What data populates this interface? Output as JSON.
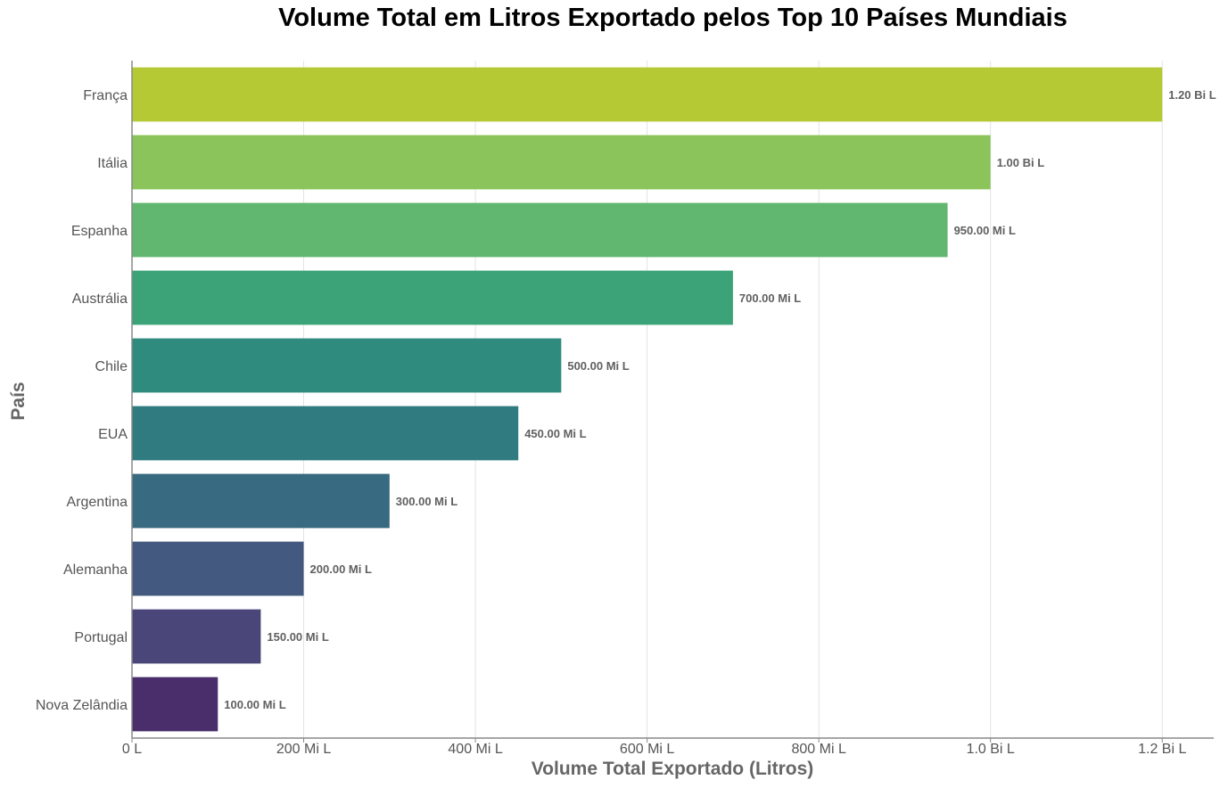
{
  "chart_data": {
    "type": "bar",
    "orientation": "horizontal",
    "title": "Volume Total em Litros Exportado pelos Top 10 Países Mundiais",
    "xlabel": "Volume Total Exportado (Litros)",
    "ylabel": "País",
    "categories": [
      "França",
      "Itália",
      "Espanha",
      "Austrália",
      "Chile",
      "EUA",
      "Argentina",
      "Alemanha",
      "Portugal",
      "Nova Zelândia"
    ],
    "values": [
      1200000000,
      1000000000,
      950000000,
      700000000,
      500000000,
      450000000,
      300000000,
      200000000,
      150000000,
      100000000
    ],
    "data_labels": [
      "1.20 Bi L",
      "1.00 Bi L",
      "950.00 Mi L",
      "700.00 Mi L",
      "500.00 Mi L",
      "450.00 Mi L",
      "300.00 Mi L",
      "200.00 Mi L",
      "150.00 Mi L",
      "100.00 Mi L"
    ],
    "colors": [
      "#b5c935",
      "#8bc45a",
      "#61b76f",
      "#3ca278",
      "#2e8b7e",
      "#307b80",
      "#386a82",
      "#44597f",
      "#4a4679",
      "#4a2e6c"
    ],
    "xticks": [
      0,
      200000000,
      400000000,
      600000000,
      800000000,
      1000000000,
      1200000000
    ],
    "xtick_labels": [
      "0 L",
      "200 Mi L",
      "400 Mi L",
      "600 Mi L",
      "800 Mi L",
      "1.0 Bi L",
      "1.2 Bi L"
    ],
    "xlim": [
      0,
      1260000000
    ],
    "grid": "vertical",
    "legend": "none"
  }
}
